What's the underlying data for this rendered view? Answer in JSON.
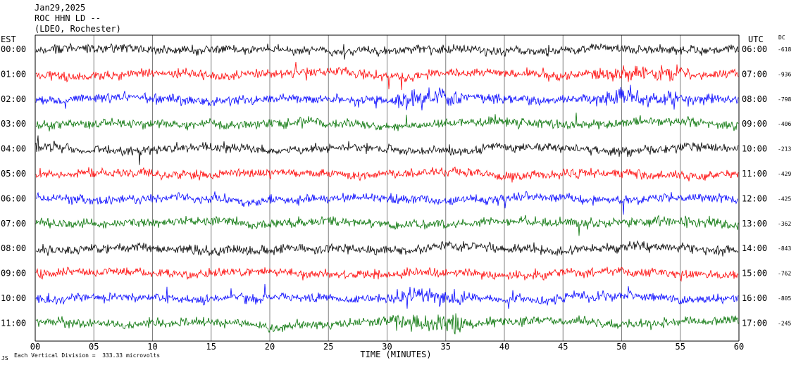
{
  "header": {
    "date": "Jan29,2025",
    "station": "ROC HHN LD --",
    "network": "(LDEO, Rochester)"
  },
  "axes": {
    "left_label": "EST",
    "right_label": "UTC",
    "dc_label": "DC",
    "xlabel": "TIME (MINUTES)"
  },
  "footer": {
    "corner": "JS",
    "scale": "Each Vertical Division =  333.33 microvolts"
  },
  "colors": {
    "trace_cycle": [
      "#000000",
      "#ff0000",
      "#0000ff",
      "#007000"
    ],
    "grid": "#808080"
  },
  "chart_data": {
    "type": "line",
    "title": "ROC HHN LD -- (LDEO, Rochester) Jan29,2025",
    "xlabel": "TIME (MINUTES)",
    "xlim": [
      0,
      60
    ],
    "x_ticks": [
      "00",
      "05",
      "10",
      "15",
      "20",
      "25",
      "30",
      "35",
      "40",
      "45",
      "50",
      "55",
      "60"
    ],
    "rows": [
      {
        "est": "00:00",
        "utc": "06:00",
        "dc": "-618",
        "color": "#000000"
      },
      {
        "est": "01:00",
        "utc": "07:00",
        "dc": "-936",
        "color": "#ff0000"
      },
      {
        "est": "02:00",
        "utc": "08:00",
        "dc": "-798",
        "color": "#0000ff"
      },
      {
        "est": "03:00",
        "utc": "09:00",
        "dc": "-406",
        "color": "#007000"
      },
      {
        "est": "04:00",
        "utc": "10:00",
        "dc": "-213",
        "color": "#000000"
      },
      {
        "est": "05:00",
        "utc": "11:00",
        "dc": "-429",
        "color": "#ff0000"
      },
      {
        "est": "06:00",
        "utc": "12:00",
        "dc": "-425",
        "color": "#0000ff"
      },
      {
        "est": "07:00",
        "utc": "13:00",
        "dc": "-362",
        "color": "#007000"
      },
      {
        "est": "08:00",
        "utc": "14:00",
        "dc": "-843",
        "color": "#000000"
      },
      {
        "est": "09:00",
        "utc": "15:00",
        "dc": "-762",
        "color": "#ff0000"
      },
      {
        "est": "10:00",
        "utc": "16:00",
        "dc": "-805",
        "color": "#0000ff"
      },
      {
        "est": "11:00",
        "utc": "17:00",
        "dc": "-245",
        "color": "#007000"
      }
    ]
  }
}
